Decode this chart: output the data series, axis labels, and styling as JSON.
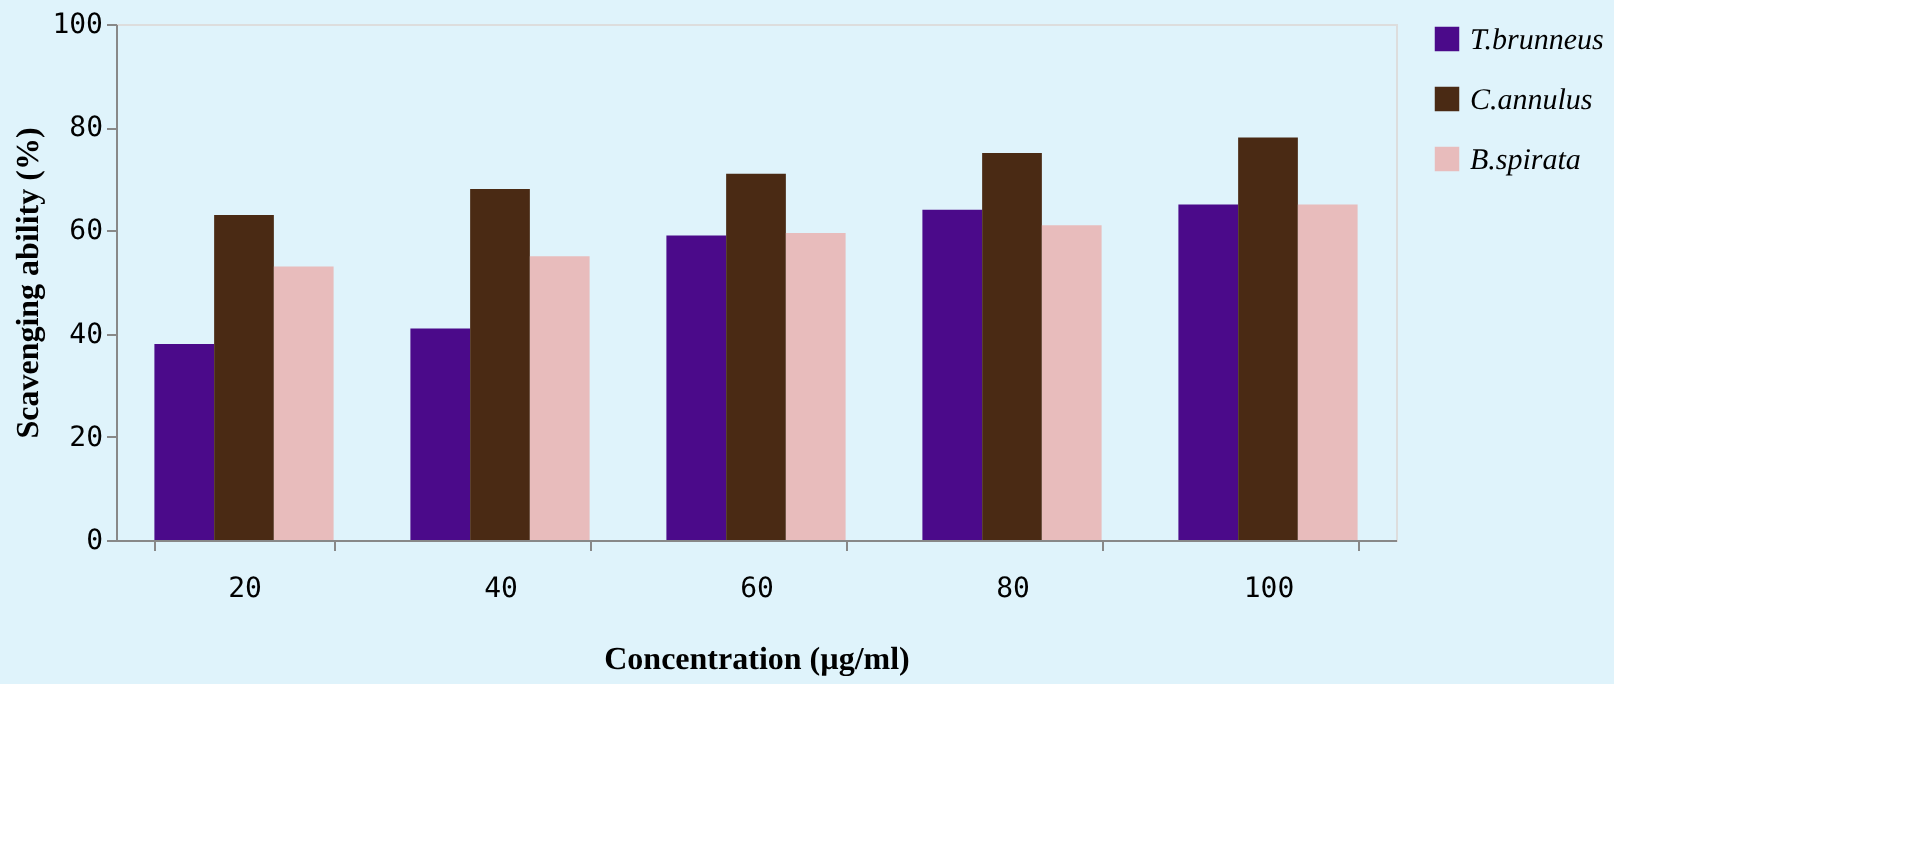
{
  "chart_data": {
    "type": "bar",
    "xlabel": "Concentration (µg/ml)",
    "ylabel": "Scavenging ability (%)",
    "categories": [
      "20",
      "40",
      "60",
      "80",
      "100"
    ],
    "series": [
      {
        "name": "T.brunneus",
        "color": "#4b0a8a",
        "values": [
          38,
          41,
          59,
          64,
          65
        ]
      },
      {
        "name": "C.annulus",
        "color": "#4a2a14",
        "values": [
          63,
          68,
          71,
          75,
          78
        ]
      },
      {
        "name": "B.spirata",
        "color": "#e8bcbc",
        "values": [
          53,
          55,
          59.5,
          61,
          65
        ]
      }
    ],
    "ylim": [
      0,
      100
    ],
    "yticks": [
      0,
      20,
      40,
      60,
      80,
      100
    ],
    "grid": false,
    "legend": "right"
  }
}
